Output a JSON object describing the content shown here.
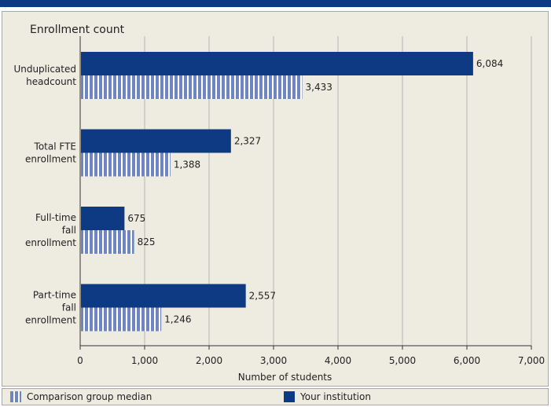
{
  "chart_data": {
    "type": "bar",
    "orientation": "horizontal",
    "title": "Enrollment count",
    "xlabel": "Number of students",
    "ylabel": "",
    "xlim": [
      0,
      7000
    ],
    "x_ticks": [
      "0",
      "1,000",
      "2,000",
      "3,000",
      "4,000",
      "5,000",
      "6,000",
      "7,000"
    ],
    "categories": [
      [
        "Unduplicated",
        "headcount"
      ],
      [
        "Total FTE",
        "enrollment"
      ],
      [
        "Full-time",
        "fall",
        "enrollment"
      ],
      [
        "Part-time",
        "fall",
        "enrollment"
      ]
    ],
    "series": [
      {
        "name": "Your institution",
        "color": "#0d3a82",
        "values": [
          6084,
          2327,
          675,
          2557
        ],
        "labels": [
          "6,084",
          "2,327",
          "675",
          "2,557"
        ]
      },
      {
        "name": "Comparison group median",
        "color": "#6f86c0",
        "pattern": "vertical-stripes",
        "values": [
          3433,
          1388,
          825,
          1246
        ],
        "labels": [
          "3,433",
          "1,388",
          "825",
          "1,246"
        ]
      }
    ],
    "grid": "vertical",
    "legend": "bottom"
  },
  "legend": {
    "comparison_label": "Comparison group median",
    "yours_label": "Your institution"
  }
}
